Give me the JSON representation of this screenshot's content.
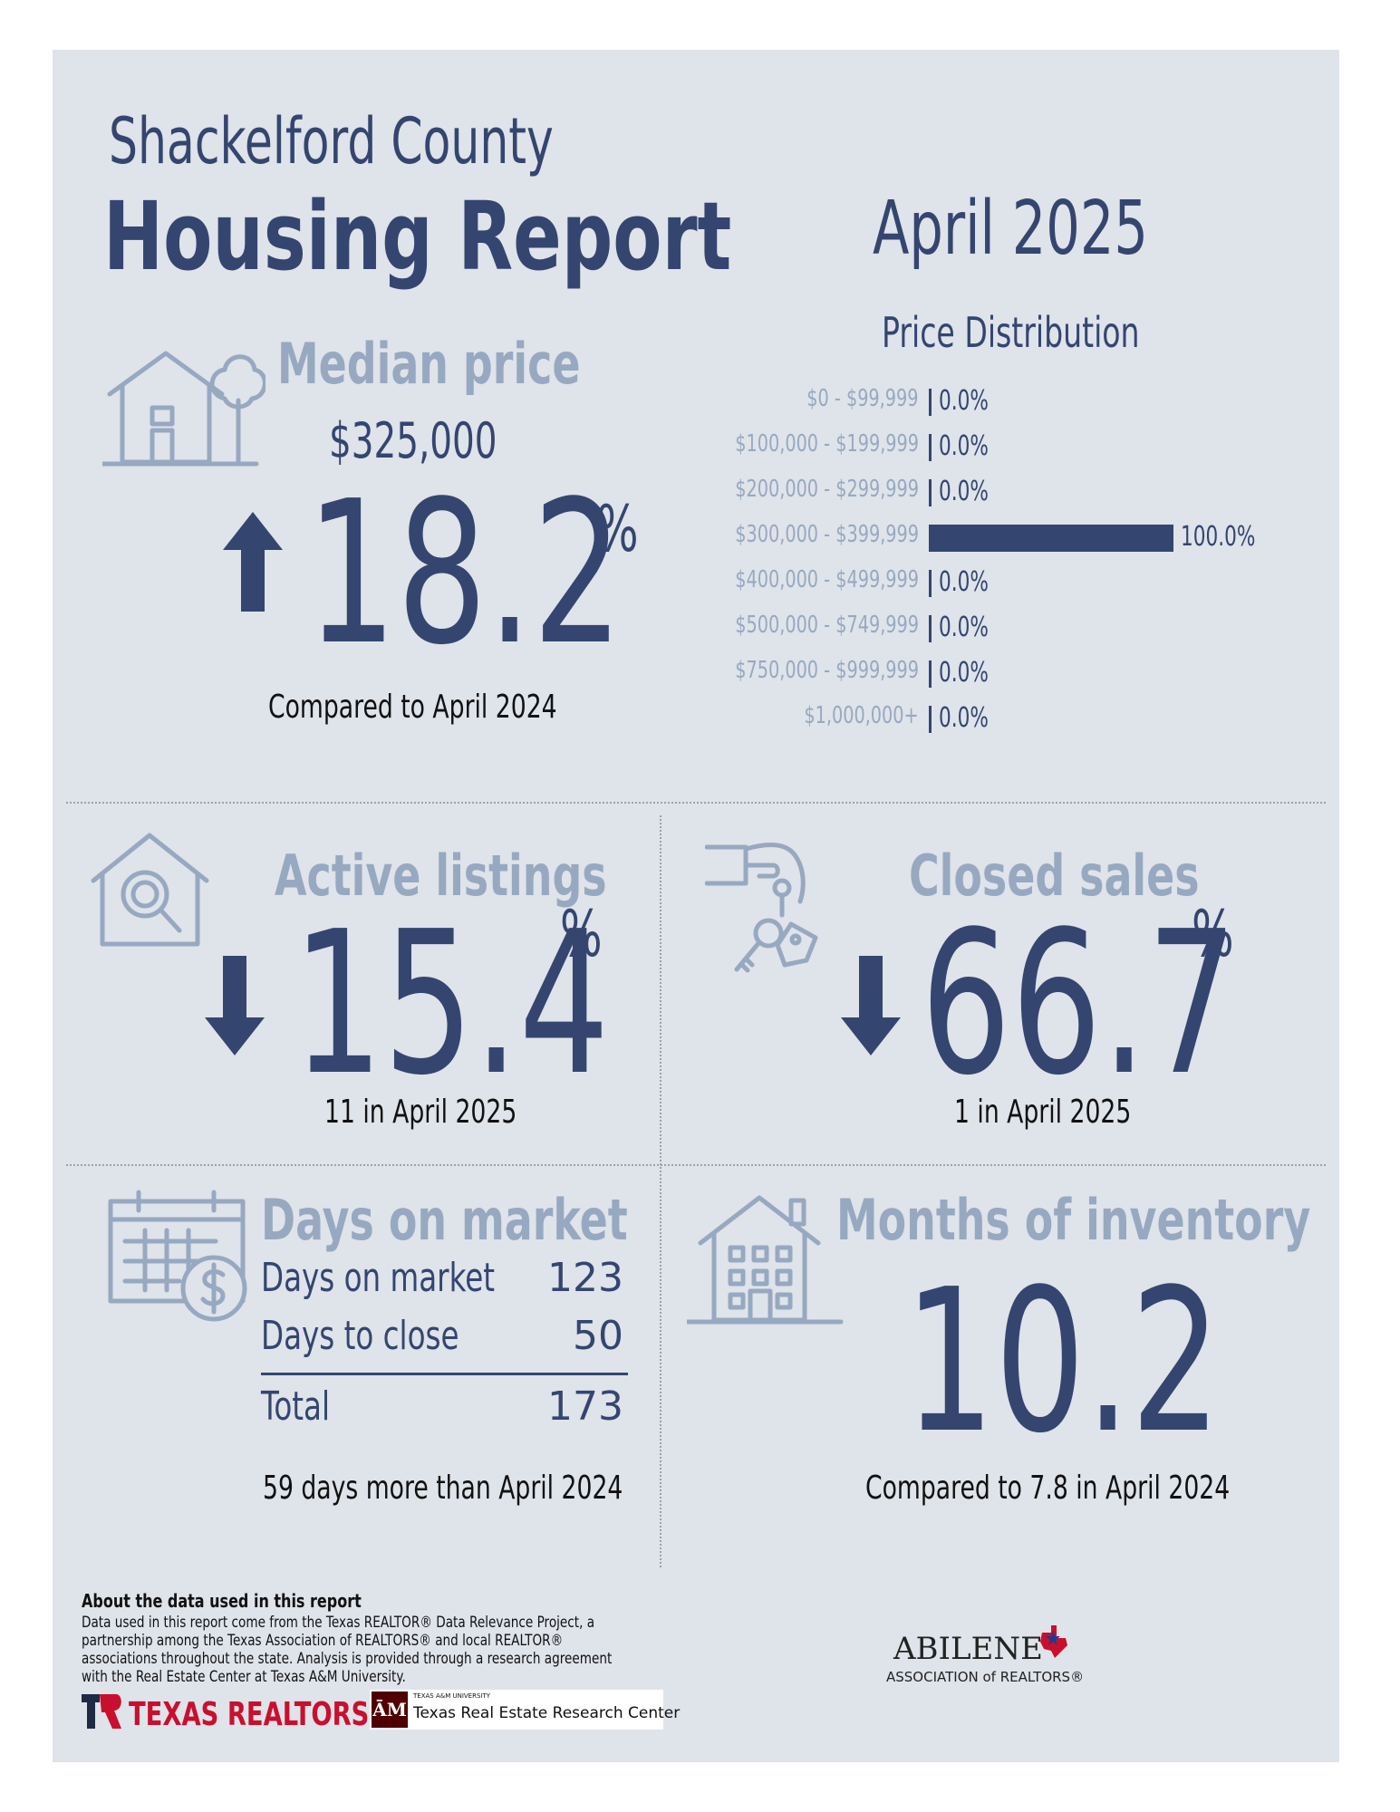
{
  "header": {
    "county": "Shackelford County",
    "title": "Housing Report",
    "month": "April 2025"
  },
  "median_price": {
    "label": "Median price",
    "value": "$325,000",
    "direction": "up",
    "change": "18.2",
    "pct": "%",
    "note": "Compared to April 2024"
  },
  "price_distribution": {
    "title": "Price Distribution",
    "rows": [
      {
        "range": "$0 - $99,999",
        "value": "0.0%"
      },
      {
        "range": "$100,000 - $199,999",
        "value": "0.0%"
      },
      {
        "range": "$200,000 - $299,999",
        "value": "0.0%"
      },
      {
        "range": "$300,000 - $399,999",
        "value": "100.0%"
      },
      {
        "range": "$400,000 - $499,999",
        "value": "0.0%"
      },
      {
        "range": "$500,000 - $749,999",
        "value": "0.0%"
      },
      {
        "range": "$750,000 - $999,999",
        "value": "0.0%"
      },
      {
        "range": "$1,000,000+",
        "value": "0.0%"
      }
    ]
  },
  "chart_data": {
    "type": "bar",
    "title": "Price Distribution",
    "categories": [
      "$0 - $99,999",
      "$100,000 - $199,999",
      "$200,000 - $299,999",
      "$300,000 - $399,999",
      "$400,000 - $499,999",
      "$500,000 - $749,999",
      "$750,000 - $999,999",
      "$1,000,000+"
    ],
    "values": [
      0.0,
      0.0,
      0.0,
      100.0,
      0.0,
      0.0,
      0.0,
      0.0
    ],
    "xlabel": "",
    "ylabel": "",
    "orientation": "horizontal",
    "xlim": [
      0,
      100
    ]
  },
  "active_listings": {
    "label": "Active listings",
    "direction": "down",
    "change": "15.4",
    "pct": "%",
    "note": "11 in April 2025"
  },
  "closed_sales": {
    "label": "Closed sales",
    "direction": "down",
    "change": "66.7",
    "pct": "%",
    "note": "1 in April 2025"
  },
  "days_on_market": {
    "title": "Days on market",
    "rows": [
      {
        "label": "Days on market",
        "value": "123"
      },
      {
        "label": "Days to close",
        "value": "50"
      }
    ],
    "total_label": "Total",
    "total_value": "173",
    "note": "59 days more than April 2024"
  },
  "months_inventory": {
    "title": "Months of inventory",
    "value": "10.2",
    "note": "Compared to 7.8 in April 2024"
  },
  "footer": {
    "about_title": "About the data used in this report",
    "about_lines": [
      "Data used in this report come from the Texas REALTOR® Data Relevance Project, a",
      "partnership among the Texas Association of REALTORS® and local REALTOR®",
      "associations throughout the state. Analysis is provided through a research agreement",
      "with the Real Estate Center at Texas A&M University."
    ],
    "texas_realtors": "TEXAS REALTORS",
    "tamu_small": "TEXAS A&M UNIVERSITY",
    "tamu_center": "Texas Real Estate Research Center",
    "abilene": "ABILENE",
    "abilene_sub": "ASSOCIATION of REALTORS®"
  },
  "colors": {
    "navy": "#34466f",
    "pale": "#97a9c0",
    "panel": "#dfe3ea",
    "texas_red": "#c8102e",
    "tamu_maroon": "#500000"
  }
}
